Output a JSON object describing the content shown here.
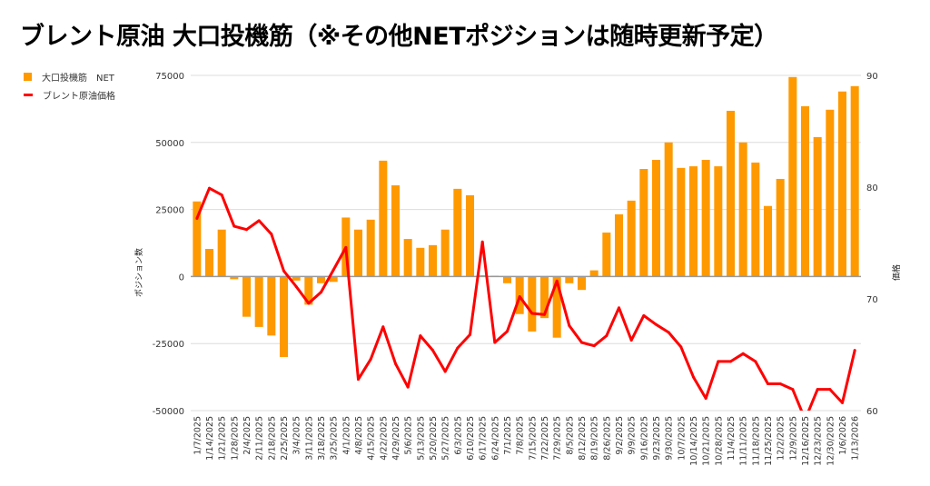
{
  "chart_data": {
    "type": "bar",
    "title": "ブレント原油 大口投機筋（※その他NETポジションは随時更新予定）",
    "ylabel": "ポジション数",
    "y2label": "価格",
    "ylim": [
      -50000,
      75000
    ],
    "y2lim": [
      60,
      90
    ],
    "yticks": [
      "75000",
      "50000",
      "25000",
      "0",
      "-25000",
      "-50000"
    ],
    "y2ticks": [
      "90",
      "80",
      "70",
      "60"
    ],
    "grid": true,
    "legend_position": "top-left",
    "colors": {
      "bar": "#ff9900",
      "line": "#ff0000"
    },
    "categories": [
      "1/7/2025",
      "1/14/2025",
      "1/21/2025",
      "1/28/2025",
      "2/4/2025",
      "2/11/2025",
      "2/18/2025",
      "2/25/2025",
      "3/4/2025",
      "3/11/2025",
      "3/18/2025",
      "3/25/2025",
      "4/1/2025",
      "4/8/2025",
      "4/15/2025",
      "4/22/2025",
      "4/29/2025",
      "5/6/2025",
      "5/13/2025",
      "5/20/2025",
      "5/27/2025",
      "6/3/2025",
      "6/10/2025",
      "6/17/2025",
      "6/24/2025",
      "7/1/2025",
      "7/8/2025",
      "7/15/2025",
      "7/22/2025",
      "7/29/2025",
      "8/5/2025",
      "8/12/2025",
      "8/19/2025",
      "8/26/2025",
      "9/2/2025",
      "9/9/2025",
      "9/16/2025",
      "9/23/2025",
      "9/30/2025",
      "10/7/2025",
      "10/14/2025",
      "10/21/2025",
      "10/28/2025",
      "11/4/2025",
      "11/11/2025",
      "11/18/2025",
      "11/25/2025",
      "12/2/2025",
      "12/9/2025",
      "12/16/2025",
      "12/23/2025",
      "12/30/2025",
      "1/6/2026",
      "1/13/2026"
    ],
    "series": [
      {
        "name": "大口投機筋　NET",
        "type": "bar",
        "axis": "left",
        "values": [
          28000,
          10300,
          17500,
          -1000,
          -15000,
          -18800,
          -22000,
          -30000,
          -1500,
          -10500,
          -2500,
          -2000,
          22000,
          17500,
          21200,
          43200,
          34000,
          14000,
          10700,
          11700,
          17500,
          32700,
          30300,
          500,
          300,
          -2500,
          -14000,
          -20500,
          -15500,
          -22800,
          -2500,
          -5000,
          2300,
          16400,
          23200,
          28300,
          40100,
          43500,
          50000,
          40500,
          41100,
          43500,
          41100,
          61800,
          50000,
          42500,
          26300,
          36400,
          74400,
          63500,
          52000,
          62200,
          69000,
          71000
        ]
      },
      {
        "name": "ブレント原油価格",
        "type": "line",
        "axis": "right",
        "values": [
          77.2,
          79.9,
          79.3,
          76.5,
          76.2,
          77.0,
          75.8,
          72.5,
          71.1,
          69.6,
          70.6,
          72.6,
          74.6,
          62.8,
          64.6,
          67.5,
          64.2,
          62.1,
          66.7,
          65.4,
          63.5,
          65.6,
          66.8,
          75.1,
          66.1,
          67.1,
          70.2,
          68.7,
          68.6,
          71.6,
          67.6,
          66.1,
          65.8,
          66.7,
          69.2,
          66.3,
          68.5,
          67.7,
          67.0,
          65.7,
          63.0,
          61.1,
          64.4,
          64.4,
          65.1,
          64.4,
          62.4,
          62.4,
          61.9,
          59.2,
          61.9,
          61.9,
          60.7,
          65.4
        ]
      }
    ]
  }
}
